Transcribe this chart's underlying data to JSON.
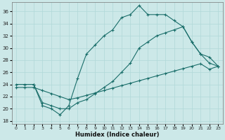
{
  "xlabel": "Humidex (Indice chaleur)",
  "xlim": [
    -0.5,
    23.5
  ],
  "ylim": [
    17.5,
    37.5
  ],
  "yticks": [
    18,
    20,
    22,
    24,
    26,
    28,
    30,
    32,
    34,
    36
  ],
  "xticks": [
    0,
    1,
    2,
    3,
    4,
    5,
    6,
    7,
    8,
    9,
    10,
    11,
    12,
    13,
    14,
    15,
    16,
    17,
    18,
    19,
    20,
    21,
    22,
    23
  ],
  "bg_color": "#cce8e8",
  "grid_color": "#b0d8d8",
  "line_color": "#1a6e6a",
  "line1_x": [
    2,
    3,
    4,
    5,
    6,
    7,
    8,
    9,
    10,
    11,
    12,
    13,
    14,
    15,
    16,
    17,
    18,
    19,
    20,
    21,
    22,
    23
  ],
  "line1_y": [
    24,
    20.5,
    20,
    19,
    20.5,
    25,
    29,
    30.5,
    32,
    33,
    35,
    35.5,
    37,
    35.5,
    35.5,
    35.5,
    34.5,
    33.5,
    31,
    29,
    27.5,
    27
  ],
  "line2_x": [
    0,
    1,
    2,
    3,
    4,
    5,
    6,
    7,
    8,
    9,
    10,
    11,
    12,
    13,
    14,
    15,
    16,
    17,
    18,
    19,
    20,
    21,
    22,
    23
  ],
  "line2_y": [
    24,
    24,
    24,
    21,
    20.5,
    20,
    20,
    21,
    21.5,
    22.5,
    23.5,
    24.5,
    26,
    27.5,
    30,
    31,
    32,
    32.5,
    33,
    33.5,
    31,
    29,
    28.5,
    27
  ],
  "line3_x": [
    0,
    1,
    2,
    3,
    4,
    5,
    6,
    7,
    8,
    9,
    10,
    11,
    12,
    13,
    14,
    15,
    16,
    17,
    18,
    19,
    20,
    21,
    22,
    23
  ],
  "line3_y": [
    23.5,
    23.5,
    23.5,
    23.0,
    22.5,
    22.0,
    21.5,
    21.8,
    22.2,
    22.6,
    23.0,
    23.4,
    23.8,
    24.2,
    24.6,
    25.0,
    25.4,
    25.8,
    26.2,
    26.6,
    27.0,
    27.4,
    26.5,
    27.0
  ]
}
